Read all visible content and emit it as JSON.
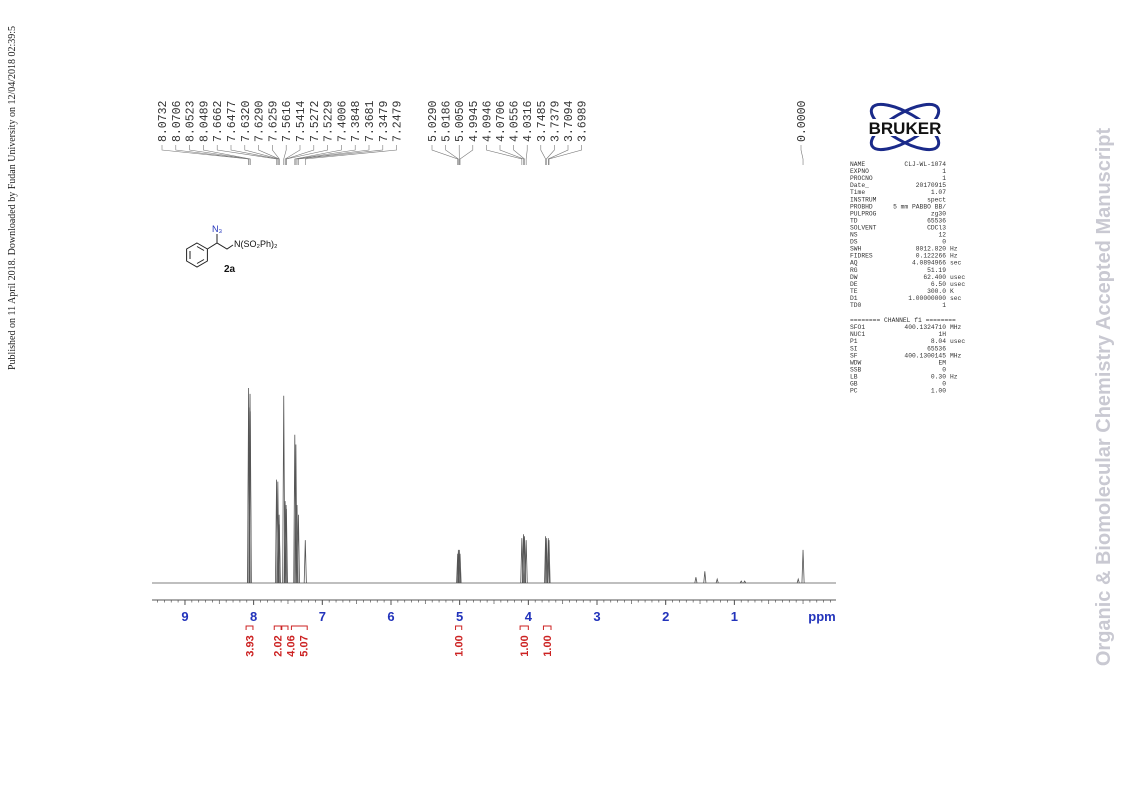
{
  "side_note": "Published on 11 April 2018. Downloaded by Fudan University on 12/04/2018 02:39:5",
  "watermark": "Organic & Biomolecular Chemistry Accepted Manuscript",
  "logo": "BRUKER",
  "compound": {
    "azide": "N₃",
    "group": "N(SO₂Ph)₂",
    "id": "2a"
  },
  "parameters": {
    "rows": [
      [
        "NAME",
        "CLJ-WL-1074"
      ],
      [
        "EXPNO",
        "1"
      ],
      [
        "PROCNO",
        "1"
      ],
      [
        "Date_",
        "20170915"
      ],
      [
        "Time",
        "1.07"
      ],
      [
        "INSTRUM",
        "spect"
      ],
      [
        "PROBHD",
        "5 mm PABBO BB/"
      ],
      [
        "PULPROG",
        "zg30"
      ],
      [
        "TD",
        "65536"
      ],
      [
        "SOLVENT",
        "CDCl3"
      ],
      [
        "NS",
        "12"
      ],
      [
        "DS",
        "0"
      ],
      [
        "SWH",
        "8012.820",
        "Hz"
      ],
      [
        "FIDRES",
        "0.122266",
        "Hz"
      ],
      [
        "AQ",
        "4.0894966",
        "sec"
      ],
      [
        "RG",
        "51.19"
      ],
      [
        "DW",
        "62.400",
        "usec"
      ],
      [
        "DE",
        "6.50",
        "usec"
      ],
      [
        "TE",
        "300.0",
        "K"
      ],
      [
        "D1",
        "1.00000000",
        "sec"
      ],
      [
        "TD0",
        "1"
      ]
    ],
    "channel_header": "======== CHANNEL f1 ========",
    "channel_rows": [
      [
        "SFO1",
        "400.1324710",
        "MHz"
      ],
      [
        "NUC1",
        "1H"
      ],
      [
        "P1",
        "8.04",
        "usec"
      ],
      [
        "SI",
        "65536"
      ],
      [
        "SF",
        "400.1300145",
        "MHz"
      ],
      [
        "WDW",
        "EM"
      ],
      [
        "SSB",
        "0"
      ],
      [
        "LB",
        "0.30",
        "Hz"
      ],
      [
        "GB",
        "0"
      ],
      [
        "PC",
        "1.00"
      ]
    ]
  },
  "chart_data": {
    "type": "spectrum",
    "x_label": "ppm",
    "xlim": [
      9.48,
      -0.48
    ],
    "xticks": [
      9,
      8,
      7,
      6,
      5,
      4,
      3,
      2,
      1
    ],
    "ylim": [
      0,
      100
    ],
    "color": "#555555",
    "peaks": {
      "x": [
        {
          "value": 8.0732,
          "label": "8.0732"
        },
        {
          "value": 8.0706,
          "label": "8.0706"
        },
        {
          "value": 8.0523,
          "label": "8.0523"
        },
        {
          "value": 8.0489,
          "label": "8.0489"
        },
        {
          "value": 7.6662,
          "label": "7.6662"
        },
        {
          "value": 7.6477,
          "label": "7.6477"
        },
        {
          "value": 7.632,
          "label": "7.6320"
        },
        {
          "value": 7.629,
          "label": "7.6290"
        },
        {
          "value": 7.6259,
          "label": "7.6259"
        },
        {
          "value": 7.5616,
          "label": "7.5616"
        },
        {
          "value": 7.5414,
          "label": "7.5414"
        },
        {
          "value": 7.5272,
          "label": "7.5272"
        },
        {
          "value": 7.5229,
          "label": "7.5229"
        },
        {
          "value": 7.4006,
          "label": "7.4006"
        },
        {
          "value": 7.3848,
          "label": "7.3848"
        },
        {
          "value": 7.3681,
          "label": "7.3681"
        },
        {
          "value": 7.3479,
          "label": "7.3479"
        },
        {
          "value": 7.2479,
          "label": "7.2479"
        },
        {
          "value": 5.029,
          "label": "5.0290"
        },
        {
          "value": 5.0186,
          "label": "5.0186"
        },
        {
          "value": 5.005,
          "label": "5.0050"
        },
        {
          "value": 4.9945,
          "label": "4.9945"
        },
        {
          "value": 4.0946,
          "label": "4.0946"
        },
        {
          "value": 4.0706,
          "label": "4.0706"
        },
        {
          "value": 4.0556,
          "label": "4.0556"
        },
        {
          "value": 4.0316,
          "label": "4.0316"
        },
        {
          "value": 3.7485,
          "label": "3.7485"
        },
        {
          "value": 3.7379,
          "label": "3.7379"
        },
        {
          "value": 3.7094,
          "label": "3.7094"
        },
        {
          "value": 3.6989,
          "label": "3.6989"
        },
        {
          "value": 0,
          "label": "0.0000"
        }
      ],
      "values": [
        100,
        90,
        97,
        88,
        53,
        52,
        30,
        35,
        30,
        96,
        42,
        40,
        38,
        76,
        71,
        40,
        35,
        22,
        15,
        17,
        17,
        15,
        23,
        25,
        24,
        22,
        24,
        23,
        23,
        22,
        17
      ]
    },
    "minor_peaks": {
      "x": [
        1.56,
        1.43,
        1.25,
        0.9,
        0.85,
        0.07
      ],
      "values": [
        3,
        6,
        2,
        1,
        1,
        2
      ]
    },
    "integrals": {
      "ranges": [
        [
          8.11,
          8.01
        ],
        [
          7.7,
          7.6
        ],
        [
          7.59,
          7.5
        ],
        [
          7.45,
          7.22
        ],
        [
          5.06,
          4.97
        ],
        [
          4.12,
          4.0
        ],
        [
          3.78,
          3.67
        ]
      ],
      "values": [
        3.93,
        2.02,
        4.06,
        5.07,
        1.0,
        1.0,
        1.0
      ],
      "value_labels": [
        "3.93",
        "2.02",
        "4.06",
        "5.07",
        "1.00",
        "1.00",
        "1.00"
      ]
    }
  }
}
